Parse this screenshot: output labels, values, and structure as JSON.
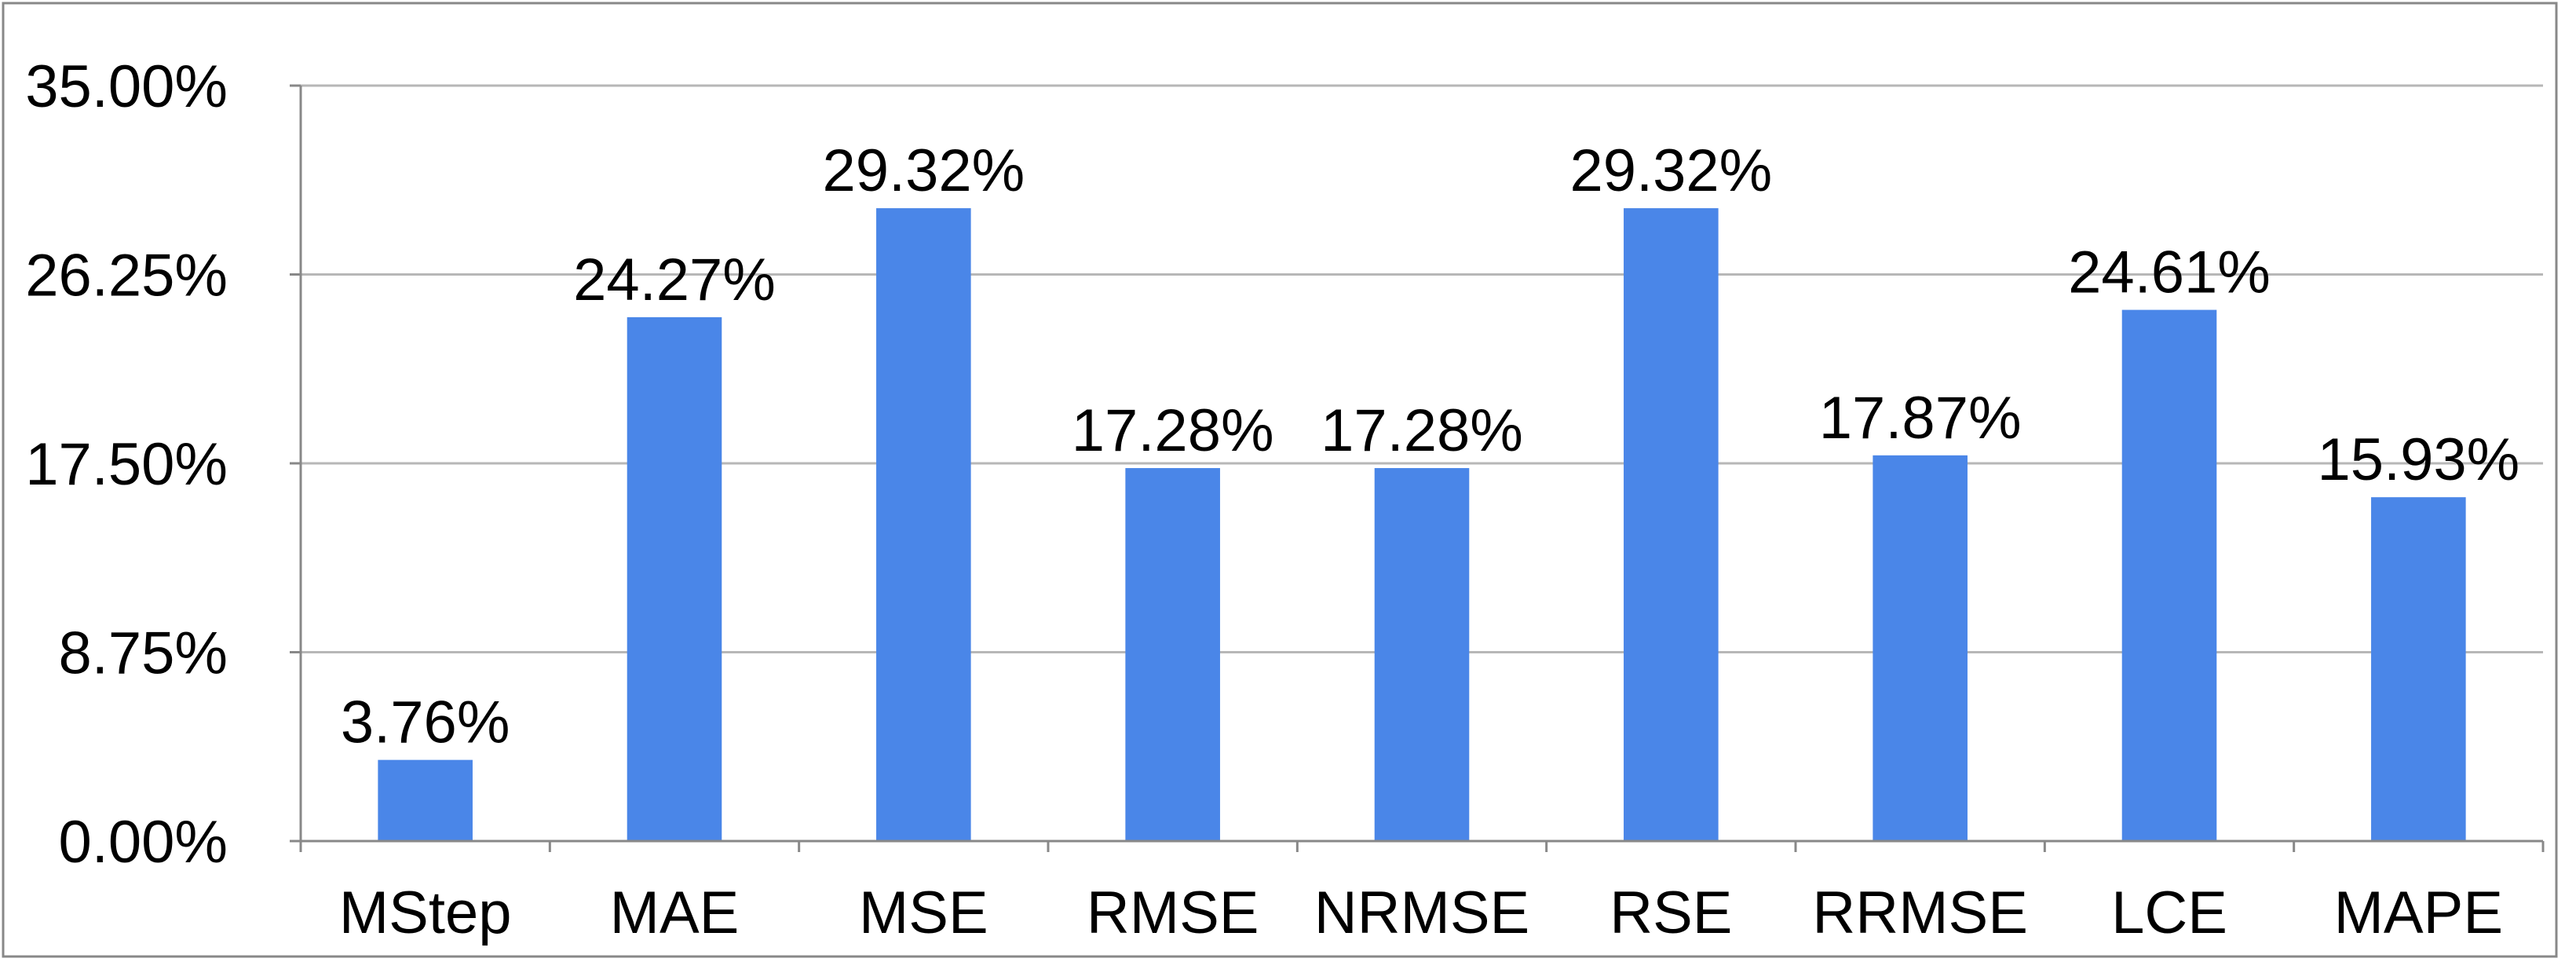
{
  "chart_data": {
    "type": "bar",
    "categories": [
      "MStep",
      "MAE",
      "MSE",
      "RMSE",
      "NRMSE",
      "RSE",
      "RRMSE",
      "LCE",
      "MAPE"
    ],
    "values": [
      3.76,
      24.27,
      29.32,
      17.28,
      17.28,
      29.32,
      17.87,
      24.61,
      15.93
    ],
    "value_labels": [
      "3.76%",
      "24.27%",
      "29.32%",
      "17.28%",
      "17.28%",
      "29.32%",
      "17.87%",
      "24.61%",
      "15.93%"
    ],
    "color": "#4a86e8",
    "ylim": [
      0,
      35
    ],
    "yticks": [
      {
        "value": 0,
        "label": "0.00%"
      },
      {
        "value": 8.75,
        "label": "8.75%"
      },
      {
        "value": 17.5,
        "label": "17.50%"
      },
      {
        "value": 26.25,
        "label": "26.25%"
      },
      {
        "value": 35,
        "label": "35.00%"
      }
    ],
    "grid": true
  }
}
